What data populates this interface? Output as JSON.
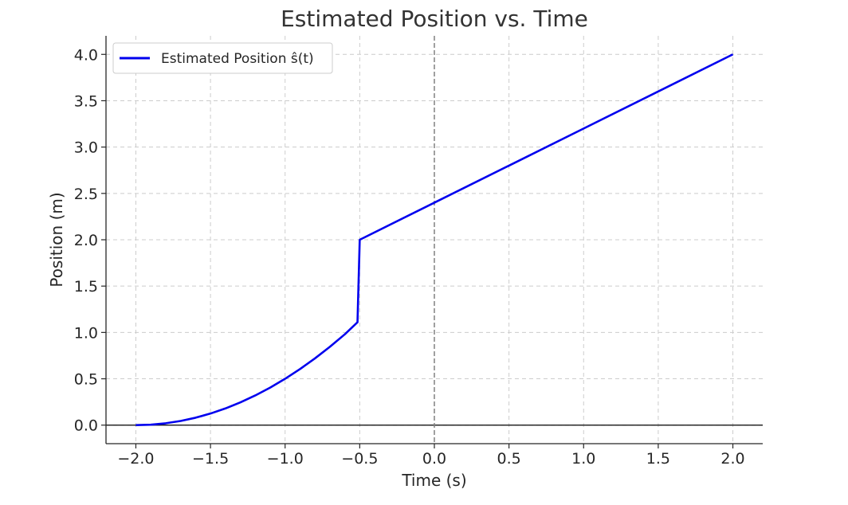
{
  "chart_data": {
    "type": "line",
    "title": "Estimated Position vs. Time",
    "xlabel": "Time (s)",
    "ylabel": "Position (m)",
    "xlim": [
      -2.2,
      2.2
    ],
    "ylim": [
      -0.2,
      4.2
    ],
    "xticks": [
      -2.0,
      -1.5,
      -1.0,
      -0.5,
      0.0,
      0.5,
      1.0,
      1.5,
      2.0
    ],
    "xtick_labels": [
      "−2.0",
      "−1.5",
      "−1.0",
      "−0.5",
      "0.0",
      "0.5",
      "1.0",
      "1.5",
      "2.0"
    ],
    "yticks": [
      0.0,
      0.5,
      1.0,
      1.5,
      2.0,
      2.5,
      3.0,
      3.5,
      4.0
    ],
    "ytick_labels": [
      "0.0",
      "0.5",
      "1.0",
      "1.5",
      "2.0",
      "2.5",
      "3.0",
      "3.5",
      "4.0"
    ],
    "grid": true,
    "legend_position": "top-left",
    "reference_lines": {
      "horizontal_y": 0.0,
      "vertical_x": 0.0
    },
    "series": [
      {
        "name": "Estimated Position ŝ(t)",
        "color": "#0000ee",
        "x": [
          -2.0,
          -1.9,
          -1.8,
          -1.7,
          -1.6,
          -1.5,
          -1.4,
          -1.3,
          -1.2,
          -1.1,
          -1.0,
          -0.9,
          -0.8,
          -0.7,
          -0.6,
          -0.515,
          -0.5,
          0.0,
          0.5,
          1.0,
          1.5,
          2.0
        ],
        "y": [
          0.0,
          0.005,
          0.02,
          0.045,
          0.08,
          0.125,
          0.18,
          0.245,
          0.32,
          0.405,
          0.5,
          0.605,
          0.72,
          0.845,
          0.98,
          1.11,
          2.0,
          2.4,
          2.8,
          3.2,
          3.6,
          4.0
        ]
      }
    ]
  }
}
